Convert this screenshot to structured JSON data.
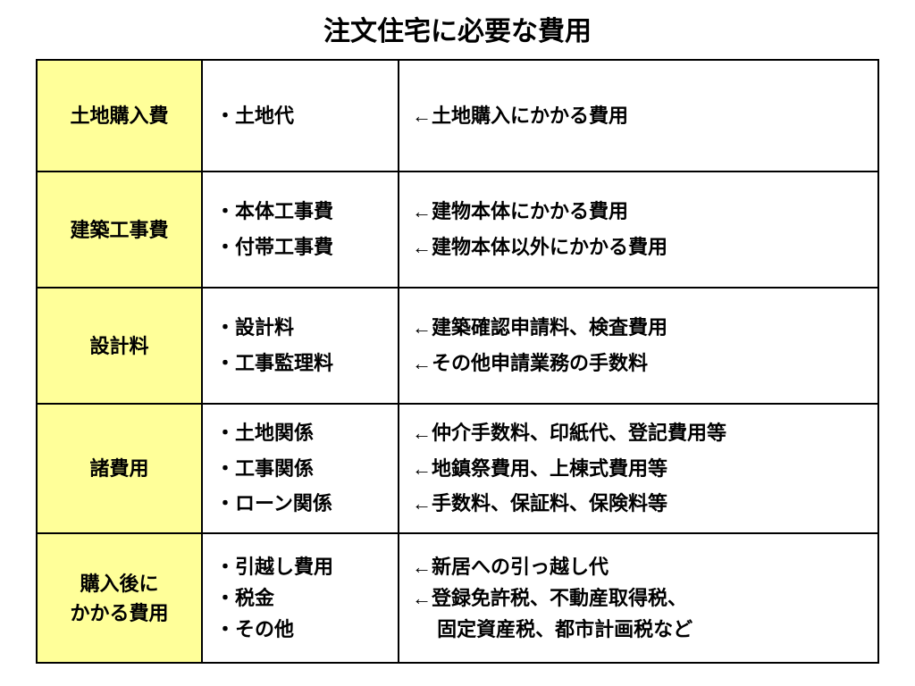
{
  "title": "注文住宅に必要な費用",
  "table": {
    "background_color": "#ffffff",
    "border_color": "#000000",
    "category_bg_color": "#ffff99",
    "text_color": "#000000",
    "title_fontsize": 30,
    "cell_fontsize": 22,
    "rows": [
      {
        "category": "土地購入費",
        "category_lines": [
          "土地購入費"
        ],
        "items": [
          "・土地代"
        ],
        "descriptions": [
          "←土地購入にかかる費用"
        ]
      },
      {
        "category": "建築工事費",
        "category_lines": [
          "建築工事費"
        ],
        "items": [
          "・本体工事費",
          "・付帯工事費"
        ],
        "descriptions": [
          "←建物本体にかかる費用",
          "←建物本体以外にかかる費用"
        ]
      },
      {
        "category": "設計料",
        "category_lines": [
          "設計料"
        ],
        "items": [
          "・設計料",
          "・工事監理料"
        ],
        "descriptions": [
          "←建築確認申請料、検査費用",
          "←その他申請業務の手数料"
        ]
      },
      {
        "category": "諸費用",
        "category_lines": [
          "諸費用"
        ],
        "items": [
          "・土地関係",
          "・工事関係",
          "・ローン関係"
        ],
        "descriptions": [
          "←仲介手数料、印紙代、登記費用等",
          "←地鎮祭費用、上棟式費用等",
          "←手数料、保証料、保険料等"
        ]
      },
      {
        "category": "購入後にかかる費用",
        "category_lines": [
          "購入後に",
          "かかる費用"
        ],
        "items": [
          "・引越し費用",
          "・税金",
          "・その他"
        ],
        "descriptions": [
          "←新居への引っ越し代",
          "←登録免許税、不動産取得税、",
          "　 固定資産税、都市計画税など"
        ]
      }
    ]
  }
}
